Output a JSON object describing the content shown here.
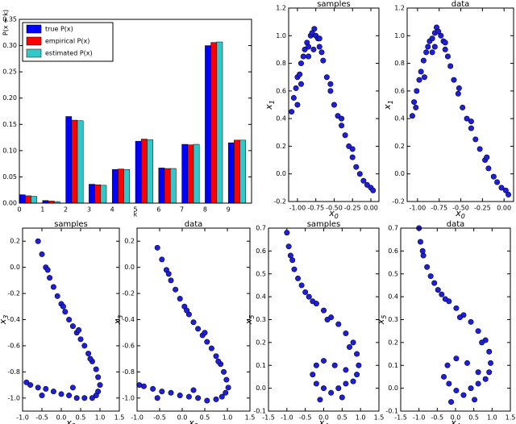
{
  "chart_data": [
    {
      "type": "bar",
      "ylabel": "P(x = k)",
      "xlabel": "k",
      "categories": [
        "0",
        "1",
        "2",
        "3",
        "4",
        "5",
        "6",
        "7",
        "8",
        "9"
      ],
      "series": [
        {
          "name": "true P(x)",
          "color": "#0000ff",
          "values": [
            0.016,
            0.005,
            0.165,
            0.036,
            0.064,
            0.118,
            0.067,
            0.112,
            0.3,
            0.115
          ]
        },
        {
          "name": "empirical P(x)",
          "color": "#ff0000",
          "values": [
            0.014,
            0.004,
            0.158,
            0.035,
            0.065,
            0.122,
            0.066,
            0.111,
            0.306,
            0.12
          ]
        },
        {
          "name": "estimated P(x)",
          "color": "#33c7c7",
          "values": [
            0.013,
            0.003,
            0.157,
            0.034,
            0.064,
            0.121,
            0.066,
            0.112,
            0.307,
            0.12
          ]
        }
      ],
      "ylim": [
        0,
        0.35
      ],
      "yticks": [
        {
          "value": 0,
          "label": "0.00"
        },
        0.05,
        {
          "value": 0.1,
          "label": "0.10"
        },
        0.15,
        {
          "value": 0.2,
          "label": "0.20"
        },
        0.25,
        {
          "value": 0.3,
          "label": "0.30"
        },
        0.35
      ],
      "legend": "upper-left"
    },
    {
      "type": "scatter",
      "title": "samples",
      "xlabel": [
        "x",
        "0"
      ],
      "ylabel": [
        "x",
        "1"
      ],
      "color": "#1f1fd6",
      "x": [
        -1.08,
        -1.05,
        -1.02,
        -1.0,
        -0.97,
        -0.95,
        -0.92,
        -0.9,
        -0.87,
        -0.85,
        -0.82,
        -0.8,
        -0.77,
        -0.75,
        -0.72,
        -0.7,
        -0.67,
        -0.65,
        -0.6,
        -0.55,
        -0.5,
        -0.45,
        -0.4,
        -0.35,
        -0.3,
        -0.25,
        -0.2,
        -0.15,
        -0.1,
        -0.05,
        0.0,
        0.03,
        -0.95,
        -0.85,
        -0.7,
        -0.55,
        -0.4,
        -0.25,
        -1.0,
        -0.78
      ],
      "y": [
        0.45,
        0.55,
        0.62,
        0.7,
        0.72,
        0.8,
        0.85,
        0.9,
        0.95,
        0.92,
        1.0,
        1.02,
        1.05,
        1.0,
        0.98,
        0.92,
        0.88,
        0.82,
        0.7,
        0.6,
        0.5,
        0.42,
        0.35,
        0.28,
        0.2,
        0.12,
        0.05,
        0.0,
        -0.05,
        -0.08,
        -0.1,
        -0.12,
        0.65,
        0.85,
        0.98,
        0.65,
        0.4,
        0.18,
        0.5,
        0.9
      ],
      "xlim": [
        -1.12,
        0.11
      ],
      "xticks": [
        {
          "value": -1,
          "label": "-1.00"
        },
        -0.75,
        {
          "value": -0.5,
          "label": "-0.50"
        },
        -0.25,
        {
          "value": 0,
          "label": "0.00"
        }
      ],
      "ylim": [
        -0.2,
        1.2
      ],
      "yticks": [
        -0.2,
        {
          "value": 0,
          "label": "0.0"
        },
        0.2,
        0.4,
        0.6,
        0.8,
        {
          "value": 1,
          "label": "1.0"
        },
        1.2
      ]
    },
    {
      "type": "scatter",
      "title": "data",
      "xlabel": [
        "x",
        "0"
      ],
      "ylabel": [
        "x",
        "1"
      ],
      "color": "#1f1fd6",
      "x": [
        -1.06,
        -1.04,
        -1.01,
        -0.98,
        -0.96,
        -0.93,
        -0.9,
        -0.88,
        -0.86,
        -0.83,
        -0.8,
        -0.78,
        -0.76,
        -0.73,
        -0.7,
        -0.68,
        -0.65,
        -0.62,
        -0.58,
        -0.53,
        -0.48,
        -0.43,
        -0.38,
        -0.33,
        -0.28,
        -0.22,
        -0.18,
        -0.12,
        -0.08,
        -0.03,
        0.02,
        0.05,
        -0.92,
        -0.83,
        -0.68,
        -0.52,
        -0.38,
        -0.2,
        -1.02,
        -0.8
      ],
      "y": [
        0.42,
        0.52,
        0.6,
        0.68,
        0.74,
        0.82,
        0.88,
        0.92,
        0.96,
        0.98,
        1.02,
        1.06,
        1.03,
        1.0,
        0.96,
        0.9,
        0.85,
        0.78,
        0.68,
        0.58,
        0.48,
        0.4,
        0.33,
        0.25,
        0.18,
        0.1,
        0.04,
        -0.02,
        -0.06,
        -0.1,
        -0.12,
        -0.15,
        0.7,
        0.88,
        0.95,
        0.62,
        0.38,
        0.12,
        0.48,
        0.92
      ],
      "xlim": [
        -1.12,
        0.11
      ],
      "xticks": [
        {
          "value": -1,
          "label": "-1.00"
        },
        -0.75,
        {
          "value": -0.5,
          "label": "-0.50"
        },
        -0.25,
        {
          "value": 0,
          "label": "0.00"
        }
      ],
      "ylim": [
        -0.2,
        1.2
      ],
      "yticks": [
        -0.2,
        {
          "value": 0,
          "label": "0.0"
        },
        0.2,
        0.4,
        0.6,
        0.8,
        {
          "value": 1,
          "label": "1.0"
        },
        1.2
      ]
    },
    {
      "type": "scatter",
      "title": "samples",
      "xlabel": [
        "x",
        "2"
      ],
      "ylabel": [
        "x",
        "3"
      ],
      "color": "#1f1fd6",
      "x": [
        -0.6,
        -0.5,
        -0.4,
        -0.3,
        -0.2,
        -0.1,
        0.0,
        0.1,
        0.2,
        0.3,
        0.4,
        0.5,
        0.6,
        0.7,
        0.8,
        0.9,
        0.95,
        1.0,
        0.95,
        0.9,
        0.8,
        0.6,
        0.4,
        0.2,
        0.0,
        -0.2,
        -0.4,
        -0.6,
        -0.8,
        -0.9,
        -0.35,
        0.05,
        0.45,
        0.75,
        0.3,
        -0.5
      ],
      "y": [
        0.2,
        0.1,
        0.0,
        -0.08,
        -0.15,
        -0.22,
        -0.28,
        -0.34,
        -0.4,
        -0.45,
        -0.5,
        -0.55,
        -0.6,
        -0.66,
        -0.72,
        -0.78,
        -0.84,
        -0.9,
        -0.95,
        -0.98,
        -1.0,
        -1.0,
        -1.0,
        -0.98,
        -0.97,
        -0.95,
        -0.93,
        -0.92,
        -0.9,
        -0.88,
        -0.02,
        -0.3,
        -0.48,
        -0.7,
        -0.92,
        -0.98
      ],
      "xlim": [
        -1.0,
        1.5
      ],
      "xticks": [
        {
          "value": -1,
          "label": "-1.0"
        },
        -0.5,
        {
          "value": 0,
          "label": "0.0"
        },
        0.5,
        {
          "value": 1,
          "label": "1.0"
        },
        1.5
      ],
      "ylim": [
        -1.1,
        0.3
      ],
      "yticks": [
        0.2,
        {
          "value": 0,
          "label": "0.0"
        },
        -0.2,
        -0.4,
        -0.6,
        -0.8,
        {
          "value": -1,
          "label": "-1.0"
        }
      ]
    },
    {
      "type": "scatter",
      "title": "data",
      "xlabel": [
        "x",
        "2"
      ],
      "ylabel": [
        "x",
        "3"
      ],
      "color": "#1f1fd6",
      "x": [
        -0.55,
        -0.45,
        -0.35,
        -0.25,
        -0.15,
        -0.05,
        0.05,
        0.15,
        0.25,
        0.35,
        0.45,
        0.55,
        0.65,
        0.75,
        0.85,
        0.92,
        0.98,
        1.02,
        0.96,
        0.88,
        0.75,
        0.55,
        0.35,
        0.15,
        -0.05,
        -0.25,
        -0.45,
        -0.65,
        -0.85,
        -0.95,
        -0.3,
        0.1,
        0.5,
        0.8,
        0.25,
        -0.55
      ],
      "y": [
        0.15,
        0.06,
        -0.02,
        -0.1,
        -0.17,
        -0.24,
        -0.3,
        -0.36,
        -0.42,
        -0.47,
        -0.52,
        -0.57,
        -0.62,
        -0.68,
        -0.74,
        -0.8,
        -0.86,
        -0.92,
        -0.96,
        -0.99,
        -1.01,
        -1.02,
        -1.0,
        -0.99,
        -0.98,
        -0.96,
        -0.95,
        -0.93,
        -0.91,
        -0.9,
        -0.05,
        -0.33,
        -0.5,
        -0.72,
        -0.94,
        -1.0
      ],
      "xlim": [
        -1.0,
        1.5
      ],
      "xticks": [
        {
          "value": -1,
          "label": "-1.0"
        },
        -0.5,
        {
          "value": 0,
          "label": "0.0"
        },
        0.5,
        {
          "value": 1,
          "label": "1.0"
        },
        1.5
      ],
      "ylim": [
        -1.1,
        0.3
      ],
      "yticks": [
        0.2,
        {
          "value": 0,
          "label": "0.0"
        },
        -0.2,
        -0.4,
        -0.6,
        -0.8,
        {
          "value": -1,
          "label": "-1.0"
        }
      ]
    },
    {
      "type": "scatter",
      "title": "samples",
      "xlabel": [
        "x",
        "4"
      ],
      "ylabel": [
        "x",
        "5"
      ],
      "color": "#1f1fd6",
      "x": [
        -1.0,
        -0.95,
        -0.9,
        -0.8,
        -0.7,
        -0.6,
        -0.5,
        -0.4,
        -0.2,
        0.0,
        0.2,
        0.4,
        0.6,
        0.8,
        0.9,
        0.95,
        0.9,
        0.8,
        0.6,
        0.4,
        0.2,
        0.0,
        -0.2,
        -0.3,
        -0.2,
        0.0,
        0.3,
        0.6,
        -0.1,
        0.5,
        -0.85,
        -0.3,
        0.1,
        0.7
      ],
      "y": [
        0.68,
        0.62,
        0.58,
        0.52,
        0.48,
        0.45,
        0.42,
        0.4,
        0.37,
        0.34,
        0.31,
        0.28,
        0.24,
        0.2,
        0.15,
        0.1,
        0.06,
        0.03,
        0.02,
        0.0,
        -0.02,
        0.0,
        0.02,
        0.06,
        0.1,
        0.12,
        0.1,
        0.08,
        -0.05,
        -0.04,
        0.56,
        0.38,
        0.3,
        0.18
      ],
      "xlim": [
        -1.5,
        1.5
      ],
      "xticks": [
        -1.5,
        {
          "value": -1,
          "label": "-1.0"
        },
        -0.5,
        {
          "value": 0,
          "label": "0.0"
        },
        0.5,
        {
          "value": 1,
          "label": "1.0"
        },
        1.5
      ],
      "ylim": [
        -0.1,
        0.7
      ],
      "yticks": [
        -0.1,
        {
          "value": 0,
          "label": "0.0"
        },
        0.1,
        0.2,
        0.3,
        0.4,
        0.5,
        0.6,
        0.7
      ]
    },
    {
      "type": "scatter",
      "title": "data",
      "xlabel": [
        "x",
        "4"
      ],
      "ylabel": [
        "x",
        "5"
      ],
      "color": "#1f1fd6",
      "x": [
        -1.0,
        -0.96,
        -0.88,
        -0.78,
        -0.68,
        -0.58,
        -0.48,
        -0.38,
        -0.18,
        0.02,
        0.22,
        0.42,
        0.62,
        0.82,
        0.92,
        0.96,
        0.92,
        0.82,
        0.62,
        0.42,
        0.22,
        0.02,
        -0.18,
        -0.32,
        -0.22,
        0.02,
        0.32,
        0.62,
        -0.12,
        0.52,
        -0.9,
        -0.28,
        0.12,
        0.72
      ],
      "y": [
        0.7,
        0.64,
        0.58,
        0.53,
        0.49,
        0.46,
        0.43,
        0.41,
        0.38,
        0.35,
        0.32,
        0.29,
        0.25,
        0.21,
        0.16,
        0.11,
        0.07,
        0.04,
        0.02,
        0.0,
        -0.03,
        -0.01,
        0.02,
        0.05,
        0.1,
        0.13,
        0.11,
        0.07,
        -0.06,
        -0.05,
        0.6,
        0.39,
        0.31,
        0.2
      ],
      "xlim": [
        -1.5,
        1.5
      ],
      "xticks": [
        -1.5,
        {
          "value": -1,
          "label": "-1.0"
        },
        -0.5,
        {
          "value": 0,
          "label": "0.0"
        },
        0.5,
        {
          "value": 1,
          "label": "1.0"
        },
        1.5
      ],
      "ylim": [
        -0.1,
        0.7
      ],
      "yticks": [
        -0.1,
        {
          "value": 0,
          "label": "0.0"
        },
        0.1,
        0.2,
        0.3,
        0.4,
        0.5,
        0.6,
        0.7
      ]
    }
  ]
}
